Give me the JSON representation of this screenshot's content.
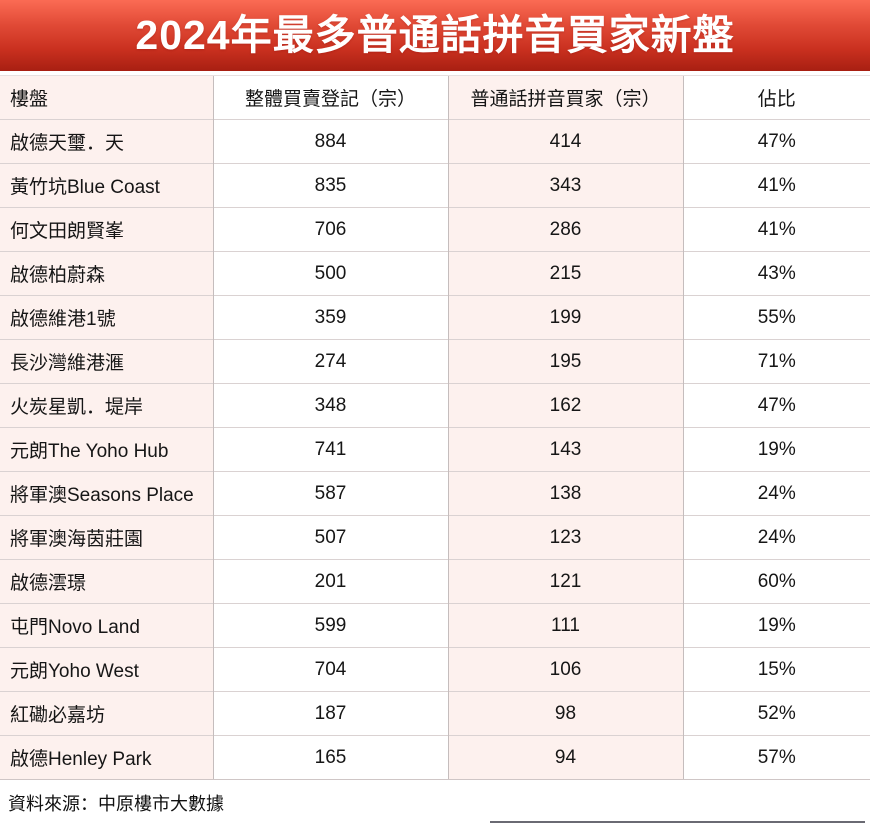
{
  "banner": {
    "accent_top": "#fb6b54",
    "accent_bottom": "#a81f12",
    "text_color": "#ffffff"
  },
  "colors": {
    "pink_cell": "#fdf1ee",
    "white_cell": "#ffffff",
    "row_border": "#dad2d2",
    "column_border": "#c5bdbd",
    "text": "#161616"
  },
  "chart_data": {
    "type": "table",
    "title": "2024年最多普通話拼音買家新盤",
    "columns": [
      "樓盤",
      "整體買賣登記（宗）",
      "普通話拼音買家（宗）",
      "佔比"
    ],
    "rows": [
      [
        "啟德天璽．天",
        "884",
        "414",
        "47%"
      ],
      [
        "黃竹坑Blue Coast",
        "835",
        "343",
        "41%"
      ],
      [
        "何文田朗賢峯",
        "706",
        "286",
        "41%"
      ],
      [
        "啟德柏蔚森",
        "500",
        "215",
        "43%"
      ],
      [
        "啟德維港1號",
        "359",
        "199",
        "55%"
      ],
      [
        "長沙灣維港滙",
        "274",
        "195",
        "71%"
      ],
      [
        "火炭星凱．堤岸",
        "348",
        "162",
        "47%"
      ],
      [
        "元朗The Yoho Hub",
        "741",
        "143",
        "19%"
      ],
      [
        "將軍澳Seasons Place",
        "587",
        "138",
        "24%"
      ],
      [
        "將軍澳海茵莊園",
        "507",
        "123",
        "24%"
      ],
      [
        "啟德澐璟",
        "201",
        "121",
        "60%"
      ],
      [
        "屯門Novo Land",
        "599",
        "111",
        "19%"
      ],
      [
        "元朗Yoho West",
        "704",
        "106",
        "15%"
      ],
      [
        "紅磡必嘉坊",
        "187",
        "98",
        "52%"
      ],
      [
        "啟德Henley Park",
        "165",
        "94",
        "57%"
      ]
    ],
    "source": "資料來源：中原樓市大數據"
  }
}
